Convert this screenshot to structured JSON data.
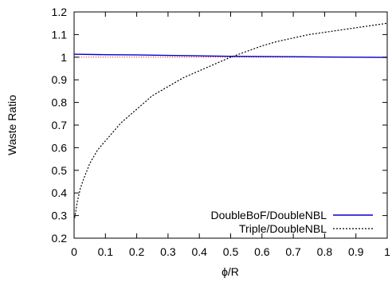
{
  "chart_data": {
    "type": "line",
    "title": "",
    "xlabel": "ϕ/R",
    "ylabel": "Waste Ratio",
    "xlim": [
      0,
      1
    ],
    "ylim": [
      0.2,
      1.2
    ],
    "xticks": [
      0,
      0.1,
      0.2,
      0.3,
      0.4,
      0.5,
      0.6,
      0.7,
      0.8,
      0.9,
      1
    ],
    "xtick_labels": [
      "0",
      "0.1",
      "0.2",
      "0.3",
      "0.4",
      "0.5",
      "0.6",
      "0.7",
      "0.8",
      "0.9",
      "1"
    ],
    "yticks": [
      0.2,
      0.3,
      0.4,
      0.5,
      0.6,
      0.7,
      0.8,
      0.9,
      1,
      1.1,
      1.2
    ],
    "ytick_labels": [
      "0.2",
      "0.3",
      "0.4",
      "0.5",
      "0.6",
      "0.7",
      "0.8",
      "0.9",
      "1",
      "1.1",
      "1.2"
    ],
    "grid": false,
    "legend_position": "bottom-right",
    "reference_line": {
      "y": 1.0,
      "color": "#ff0000",
      "style": "dotted"
    },
    "series": [
      {
        "name": "DoubleBoF/DoubleNBL",
        "color": "#0000cc",
        "style": "solid",
        "x": [
          0,
          0.1,
          0.2,
          0.3,
          0.4,
          0.5,
          0.6,
          0.7,
          0.8,
          0.9,
          1.0
        ],
        "y": [
          1.013,
          1.011,
          1.01,
          1.008,
          1.006,
          1.004,
          1.003,
          1.002,
          1.001,
          1.0,
          0.999
        ]
      },
      {
        "name": "Triple/DoubleNBL",
        "color": "#000000",
        "style": "dashed",
        "x": [
          0.002,
          0.01,
          0.02,
          0.03,
          0.05,
          0.075,
          0.1,
          0.15,
          0.2,
          0.25,
          0.3,
          0.35,
          0.4,
          0.45,
          0.5,
          0.55,
          0.6,
          0.65,
          0.7,
          0.75,
          0.8,
          0.85,
          0.9,
          0.95,
          1.0
        ],
        "y": [
          0.29,
          0.36,
          0.42,
          0.46,
          0.53,
          0.59,
          0.63,
          0.71,
          0.77,
          0.83,
          0.87,
          0.91,
          0.94,
          0.97,
          1.0,
          1.025,
          1.05,
          1.07,
          1.085,
          1.1,
          1.11,
          1.12,
          1.13,
          1.14,
          1.15
        ]
      }
    ]
  }
}
